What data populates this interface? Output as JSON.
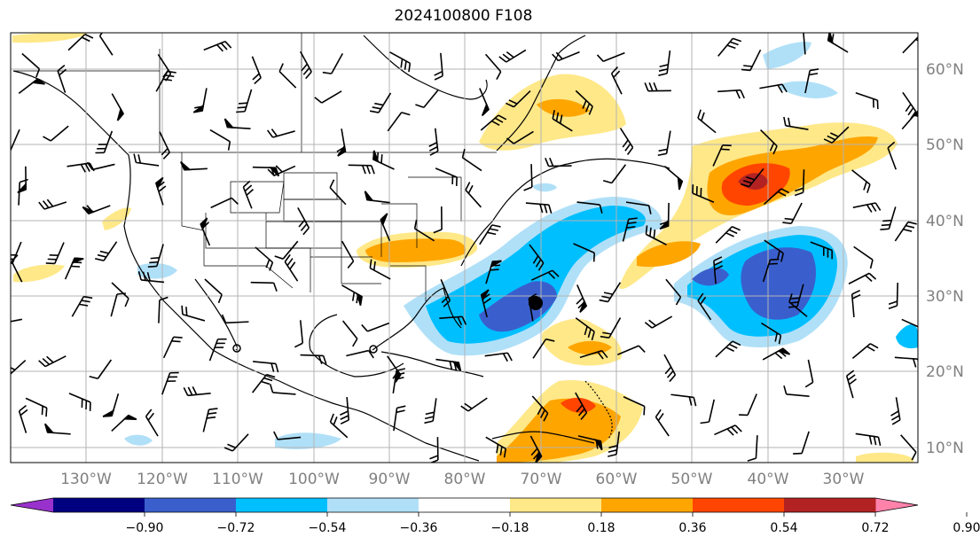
{
  "title": "2024100800 F108",
  "lon_labels": [
    "130°W",
    "120°W",
    "110°W",
    "100°W",
    "90°W",
    "80°W",
    "70°W",
    "60°W",
    "50°W",
    "40°W",
    "30°W"
  ],
  "lat_labels": [
    "60°N",
    "50°N",
    "40°N",
    "30°N",
    "20°N",
    "10°N"
  ],
  "colorbar": {
    "ticks": [
      "−0.90",
      "−0.72",
      "−0.54",
      "−0.36",
      "−0.18",
      "0.18",
      "0.36",
      "0.54",
      "0.72",
      "0.90"
    ],
    "colors": [
      "#9932cc",
      "#000080",
      "#3a5fcd",
      "#00bfff",
      "#b0e0f8",
      "#ffffff",
      "#ffe888",
      "#ffa500",
      "#ff4500",
      "#b22222",
      "#ff82ab"
    ]
  },
  "colors": {
    "gridline": "#b3b3b3",
    "coast": "#000000",
    "axis_label": "#808080"
  }
}
